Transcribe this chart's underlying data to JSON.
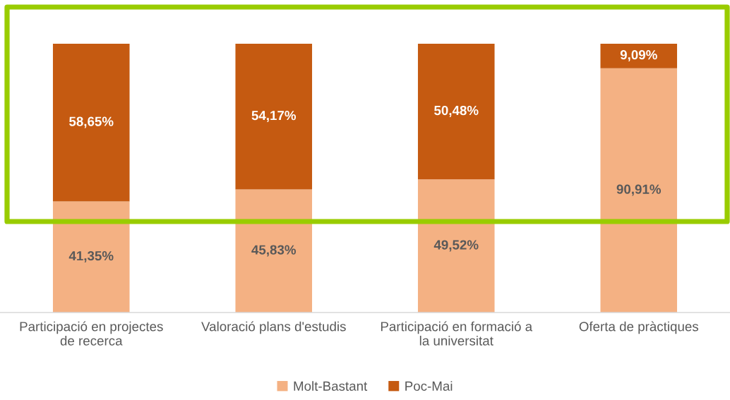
{
  "chart_data": {
    "type": "bar",
    "stacked": true,
    "tick_labels": "x",
    "legend": "bottom",
    "categories": [
      "Participació en projectes de recerca",
      "Valoració plans d'estudis",
      "Participació en formació a la universitat",
      "Oferta de pràctiques"
    ],
    "series": [
      {
        "name": "Molt-Bastant",
        "color": "#f4b183",
        "values": [
          41.35,
          45.83,
          49.52,
          90.91
        ],
        "value_labels": [
          "41,35%",
          "45,83%",
          "49,52%",
          "90,91%"
        ]
      },
      {
        "name": "Poc-Mai",
        "color": "#c55a11",
        "values": [
          58.65,
          54.17,
          50.48,
          9.09
        ],
        "value_labels": [
          "58,65%",
          "54,17%",
          "50,48%",
          "9,09%"
        ]
      }
    ]
  }
}
